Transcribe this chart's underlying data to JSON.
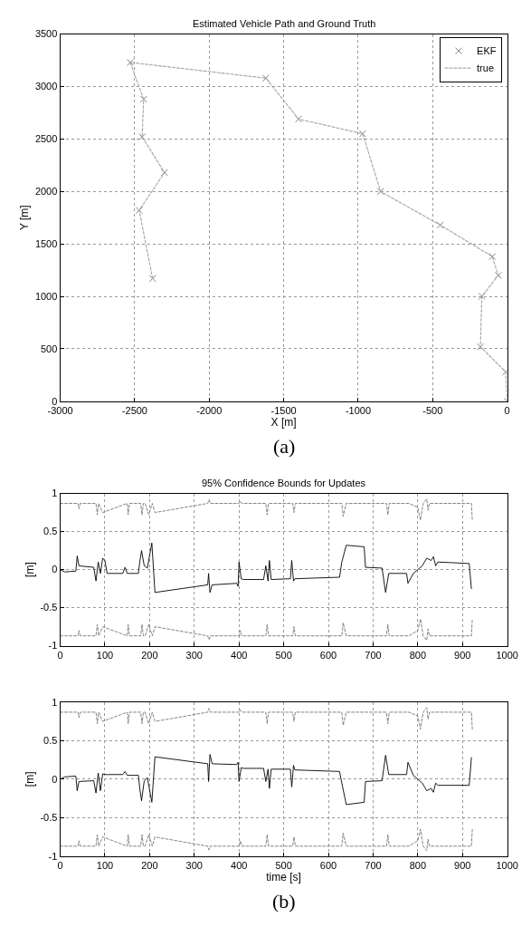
{
  "chart_data": [
    {
      "type": "scatter",
      "title": "Estimated Vehicle Path and Ground Truth",
      "xlabel": "X [m]",
      "ylabel": "Y [m]",
      "xlim": [
        -3000,
        0
      ],
      "ylim": [
        0,
        3500
      ],
      "xticks": [
        -3000,
        -2500,
        -2000,
        -1500,
        -1000,
        -500,
        0
      ],
      "yticks": [
        0,
        500,
        1000,
        1500,
        2000,
        2500,
        3000,
        3500
      ],
      "grid": true,
      "legend": "top right",
      "annotations": [
        "(a)"
      ],
      "series": [
        {
          "name": "EKF",
          "type": "scatter",
          "marker": "cross",
          "color": "#808080",
          "x": [
            0,
            -10,
            -180,
            -170,
            -60,
            -100,
            -450,
            -850,
            -970,
            -1400,
            -1620,
            -2530,
            -2440,
            -2450,
            -2300,
            -2470,
            -2380
          ],
          "values": [
            0,
            280,
            520,
            1000,
            1200,
            1380,
            1680,
            2000,
            2550,
            2690,
            3080,
            3230,
            2880,
            2520,
            2180,
            1820,
            1170
          ]
        },
        {
          "name": "true",
          "type": "line",
          "line_style": "dashed",
          "color": "#aaaaaa",
          "x": [
            0,
            -10,
            -180,
            -170,
            -60,
            -100,
            -450,
            -850,
            -970,
            -1400,
            -1620,
            -2530,
            -2440,
            -2450,
            -2300,
            -2470,
            -2380
          ],
          "values": [
            0,
            280,
            520,
            1000,
            1200,
            1380,
            1680,
            2000,
            2550,
            2690,
            3080,
            3230,
            2880,
            2520,
            2180,
            1820,
            1170
          ]
        }
      ]
    },
    {
      "type": "line",
      "title": "95% Confidence Bounds for Updates",
      "ylabel": "[m]",
      "xlim": [
        0,
        1000
      ],
      "ylim": [
        -1,
        1
      ],
      "xticks": [
        0,
        100,
        200,
        300,
        400,
        500,
        600,
        700,
        800,
        900,
        1000
      ],
      "yticks": [
        -1,
        -0.5,
        0,
        0.5,
        1
      ],
      "grid": true,
      "series": [
        {
          "color": "#000000",
          "line_style": "solid",
          "x": [
            0,
            10,
            35,
            38,
            42,
            75,
            80,
            85,
            90,
            95,
            100,
            105,
            140,
            145,
            150,
            175,
            178,
            182,
            188,
            195,
            205,
            212,
            330,
            332,
            335,
            340,
            395,
            398,
            400,
            405,
            410,
            455,
            460,
            465,
            468,
            472,
            515,
            518,
            522,
            525,
            625,
            630,
            640,
            680,
            683,
            720,
            728,
            735,
            775,
            778,
            790,
            810,
            820,
            830,
            835,
            840,
            845,
            915,
            920
          ],
          "values": [
            0,
            -0.03,
            -0.02,
            0.18,
            0.05,
            0.03,
            -0.15,
            0.1,
            -0.05,
            0.15,
            0.12,
            -0.05,
            -0.05,
            0.03,
            -0.05,
            -0.05,
            0.1,
            0.25,
            0.05,
            0.02,
            0.35,
            -0.3,
            -0.2,
            -0.05,
            -0.3,
            -0.2,
            -0.18,
            -0.22,
            0.1,
            -0.12,
            -0.13,
            -0.13,
            0.05,
            -0.15,
            0.12,
            -0.13,
            -0.12,
            0.12,
            -0.15,
            -0.12,
            -0.1,
            0.1,
            0.32,
            0.3,
            0.03,
            0.02,
            -0.3,
            -0.05,
            -0.05,
            -0.18,
            -0.05,
            0.05,
            0.15,
            0.12,
            0.17,
            0.05,
            0.1,
            0.08,
            -0.25
          ]
        },
        {
          "color": "#777777",
          "line_style": "dashed",
          "x": [
            0,
            40,
            42,
            45,
            80,
            83,
            86,
            95,
            150,
            152,
            155,
            180,
            183,
            186,
            190,
            198,
            206,
            212,
            330,
            333,
            336,
            400,
            403,
            406,
            460,
            463,
            466,
            520,
            523,
            526,
            630,
            633,
            640,
            730,
            733,
            736,
            780,
            800,
            806,
            812,
            820,
            823,
            826,
            920,
            922
          ],
          "values": [
            0.87,
            0.87,
            0.8,
            0.87,
            0.87,
            0.72,
            0.87,
            0.75,
            0.87,
            0.72,
            0.87,
            0.87,
            0.72,
            0.87,
            0.87,
            0.72,
            0.87,
            0.75,
            0.87,
            0.92,
            0.87,
            0.87,
            0.9,
            0.87,
            0.87,
            0.72,
            0.87,
            0.87,
            0.75,
            0.87,
            0.87,
            0.7,
            0.87,
            0.87,
            0.72,
            0.87,
            0.87,
            0.82,
            0.65,
            0.87,
            0.93,
            0.78,
            0.87,
            0.87,
            0.65
          ]
        },
        {
          "color": "#777777",
          "line_style": "dashed",
          "x": [
            0,
            40,
            42,
            45,
            80,
            83,
            86,
            95,
            150,
            152,
            155,
            180,
            183,
            186,
            190,
            198,
            206,
            212,
            330,
            333,
            336,
            400,
            403,
            406,
            460,
            463,
            466,
            520,
            523,
            526,
            630,
            633,
            640,
            730,
            733,
            736,
            780,
            800,
            806,
            812,
            820,
            823,
            826,
            920,
            922
          ],
          "values": [
            -0.87,
            -0.87,
            -0.8,
            -0.87,
            -0.87,
            -0.72,
            -0.87,
            -0.75,
            -0.87,
            -0.72,
            -0.87,
            -0.87,
            -0.72,
            -0.87,
            -0.87,
            -0.72,
            -0.87,
            -0.75,
            -0.87,
            -0.92,
            -0.87,
            -0.87,
            -0.8,
            -0.87,
            -0.87,
            -0.72,
            -0.87,
            -0.87,
            -0.75,
            -0.87,
            -0.87,
            -0.7,
            -0.87,
            -0.87,
            -0.72,
            -0.87,
            -0.87,
            -0.8,
            -0.65,
            -0.87,
            -0.93,
            -0.78,
            -0.87,
            -0.87,
            -0.65
          ]
        }
      ]
    },
    {
      "type": "line",
      "xlabel": "time [s]",
      "ylabel": "[m]",
      "xlim": [
        0,
        1000
      ],
      "ylim": [
        -1,
        1
      ],
      "xticks": [
        0,
        100,
        200,
        300,
        400,
        500,
        600,
        700,
        800,
        900,
        1000
      ],
      "yticks": [
        -1,
        -0.5,
        0,
        0.5,
        1
      ],
      "grid": true,
      "annotations": [
        "(b)"
      ],
      "series": [
        {
          "color": "#000000",
          "line_style": "solid",
          "x": [
            0,
            10,
            35,
            38,
            42,
            75,
            80,
            85,
            90,
            95,
            100,
            105,
            140,
            145,
            150,
            175,
            178,
            182,
            188,
            195,
            205,
            212,
            330,
            332,
            335,
            340,
            395,
            398,
            400,
            405,
            410,
            455,
            460,
            465,
            468,
            472,
            515,
            518,
            522,
            525,
            625,
            630,
            640,
            680,
            683,
            720,
            728,
            735,
            775,
            778,
            790,
            810,
            820,
            830,
            835,
            840,
            845,
            915,
            920
          ],
          "values": [
            0,
            0.03,
            0.04,
            -0.15,
            -0.03,
            -0.02,
            -0.18,
            0.08,
            -0.15,
            0.07,
            0.06,
            0.06,
            0.06,
            0.1,
            0.05,
            0.05,
            -0.12,
            -0.28,
            -0.02,
            0.02,
            -0.3,
            0.29,
            0.2,
            -0.03,
            0.32,
            0.2,
            0.19,
            0.22,
            -0.03,
            0.15,
            0.14,
            0.14,
            -0.03,
            0.13,
            -0.12,
            0.13,
            0.13,
            -0.1,
            0.18,
            0.12,
            0.1,
            -0.05,
            -0.33,
            -0.3,
            -0.03,
            -0.02,
            0.31,
            0.06,
            0.06,
            0.22,
            0.05,
            -0.05,
            -0.15,
            -0.12,
            -0.17,
            -0.05,
            -0.08,
            -0.08,
            0.28
          ]
        },
        {
          "color": "#777777",
          "line_style": "dashed",
          "x": [
            0,
            40,
            42,
            45,
            80,
            83,
            86,
            95,
            150,
            152,
            155,
            180,
            183,
            186,
            190,
            198,
            206,
            212,
            330,
            333,
            336,
            400,
            403,
            406,
            460,
            463,
            466,
            520,
            523,
            526,
            630,
            633,
            640,
            730,
            733,
            736,
            780,
            800,
            806,
            812,
            820,
            823,
            826,
            920,
            922
          ],
          "values": [
            0.87,
            0.87,
            0.8,
            0.87,
            0.87,
            0.72,
            0.87,
            0.75,
            0.87,
            0.72,
            0.87,
            0.87,
            0.72,
            0.87,
            0.87,
            0.72,
            0.87,
            0.75,
            0.87,
            0.92,
            0.87,
            0.87,
            0.9,
            0.87,
            0.87,
            0.72,
            0.87,
            0.87,
            0.75,
            0.87,
            0.87,
            0.7,
            0.87,
            0.87,
            0.72,
            0.87,
            0.87,
            0.82,
            0.65,
            0.87,
            0.93,
            0.78,
            0.87,
            0.87,
            0.65
          ]
        },
        {
          "color": "#777777",
          "line_style": "dashed",
          "x": [
            0,
            40,
            42,
            45,
            80,
            83,
            86,
            95,
            150,
            152,
            155,
            180,
            183,
            186,
            190,
            198,
            206,
            212,
            330,
            333,
            336,
            400,
            403,
            406,
            460,
            463,
            466,
            520,
            523,
            526,
            630,
            633,
            640,
            730,
            733,
            736,
            780,
            800,
            806,
            812,
            820,
            823,
            826,
            920,
            922
          ],
          "values": [
            -0.87,
            -0.87,
            -0.8,
            -0.87,
            -0.87,
            -0.72,
            -0.87,
            -0.75,
            -0.87,
            -0.72,
            -0.87,
            -0.87,
            -0.72,
            -0.87,
            -0.87,
            -0.72,
            -0.87,
            -0.75,
            -0.87,
            -0.92,
            -0.87,
            -0.87,
            -0.8,
            -0.87,
            -0.87,
            -0.72,
            -0.87,
            -0.87,
            -0.75,
            -0.87,
            -0.87,
            -0.7,
            -0.87,
            -0.87,
            -0.72,
            -0.87,
            -0.87,
            -0.8,
            -0.65,
            -0.87,
            -0.93,
            -0.78,
            -0.87,
            -0.87,
            -0.65
          ]
        }
      ]
    }
  ]
}
